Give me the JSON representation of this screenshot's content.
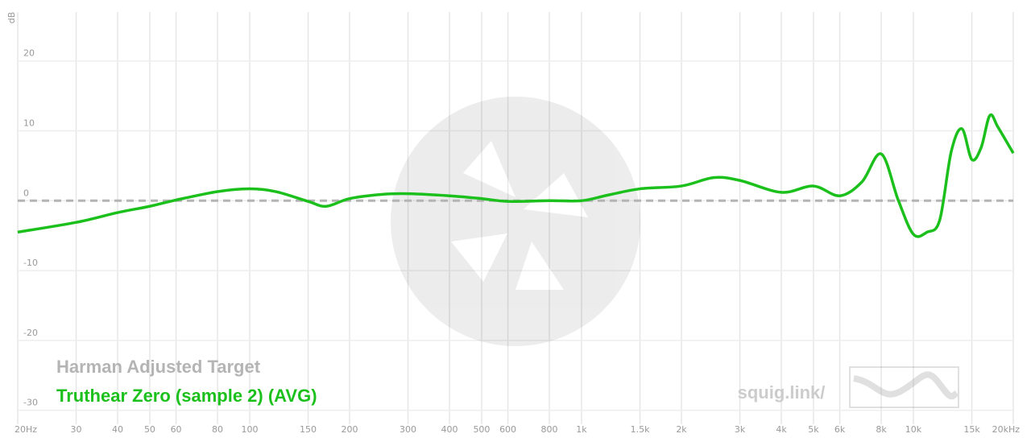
{
  "chart_data": {
    "type": "line",
    "y_label": "dB",
    "log_x": true,
    "grid": true,
    "xlim": [
      20,
      20000
    ],
    "ylim": [
      -32,
      27
    ],
    "xticks": [
      {
        "value": 20,
        "label": "20Hz"
      },
      30,
      40,
      50,
      60,
      80,
      100,
      150,
      200,
      300,
      400,
      500,
      600,
      800,
      {
        "value": 1000,
        "label": "1k"
      },
      {
        "value": 1500,
        "label": "1.5k"
      },
      {
        "value": 2000,
        "label": "2k"
      },
      {
        "value": 3000,
        "label": "3k"
      },
      {
        "value": 4000,
        "label": "4k"
      },
      {
        "value": 5000,
        "label": "5k"
      },
      {
        "value": 6000,
        "label": "6k"
      },
      {
        "value": 8000,
        "label": "8k"
      },
      {
        "value": 10000,
        "label": "10k"
      },
      {
        "value": 15000,
        "label": "15k"
      },
      {
        "value": 20000,
        "label": "20kHz"
      }
    ],
    "yticks": [
      -30,
      -20,
      -10,
      0,
      10,
      20
    ],
    "series": [
      {
        "name": "Harman Adjusted Target",
        "color": "#b4b4b4",
        "dashed": true,
        "x": [
          20,
          20000
        ],
        "values": [
          0,
          0
        ]
      },
      {
        "name": "Truthear Zero (sample 2) (AVG)",
        "color": "#1cc01c",
        "dashed": false,
        "x": [
          20,
          30,
          40,
          50,
          60,
          80,
          100,
          120,
          150,
          170,
          200,
          250,
          300,
          400,
          500,
          600,
          800,
          1000,
          1200,
          1500,
          2000,
          2500,
          3000,
          4000,
          5000,
          6000,
          7000,
          8000,
          9000,
          10000,
          11000,
          12000,
          13000,
          14000,
          15000,
          16000,
          17000,
          18000,
          20000
        ],
        "values": [
          -4.5,
          -3.1,
          -1.7,
          -0.8,
          0.1,
          1.3,
          1.7,
          1.3,
          -0.1,
          -0.8,
          0.3,
          0.9,
          1.0,
          0.7,
          0.3,
          -0.1,
          0,
          0,
          0.8,
          1.7,
          2.1,
          3.3,
          2.9,
          1.2,
          2.1,
          0.7,
          2.7,
          6.7,
          0.1,
          -4.8,
          -4.5,
          -2.8,
          7.0,
          10.3,
          5.9,
          7.6,
          12.2,
          10.5,
          6.8
        ]
      }
    ],
    "watermark": "squig.link/"
  }
}
